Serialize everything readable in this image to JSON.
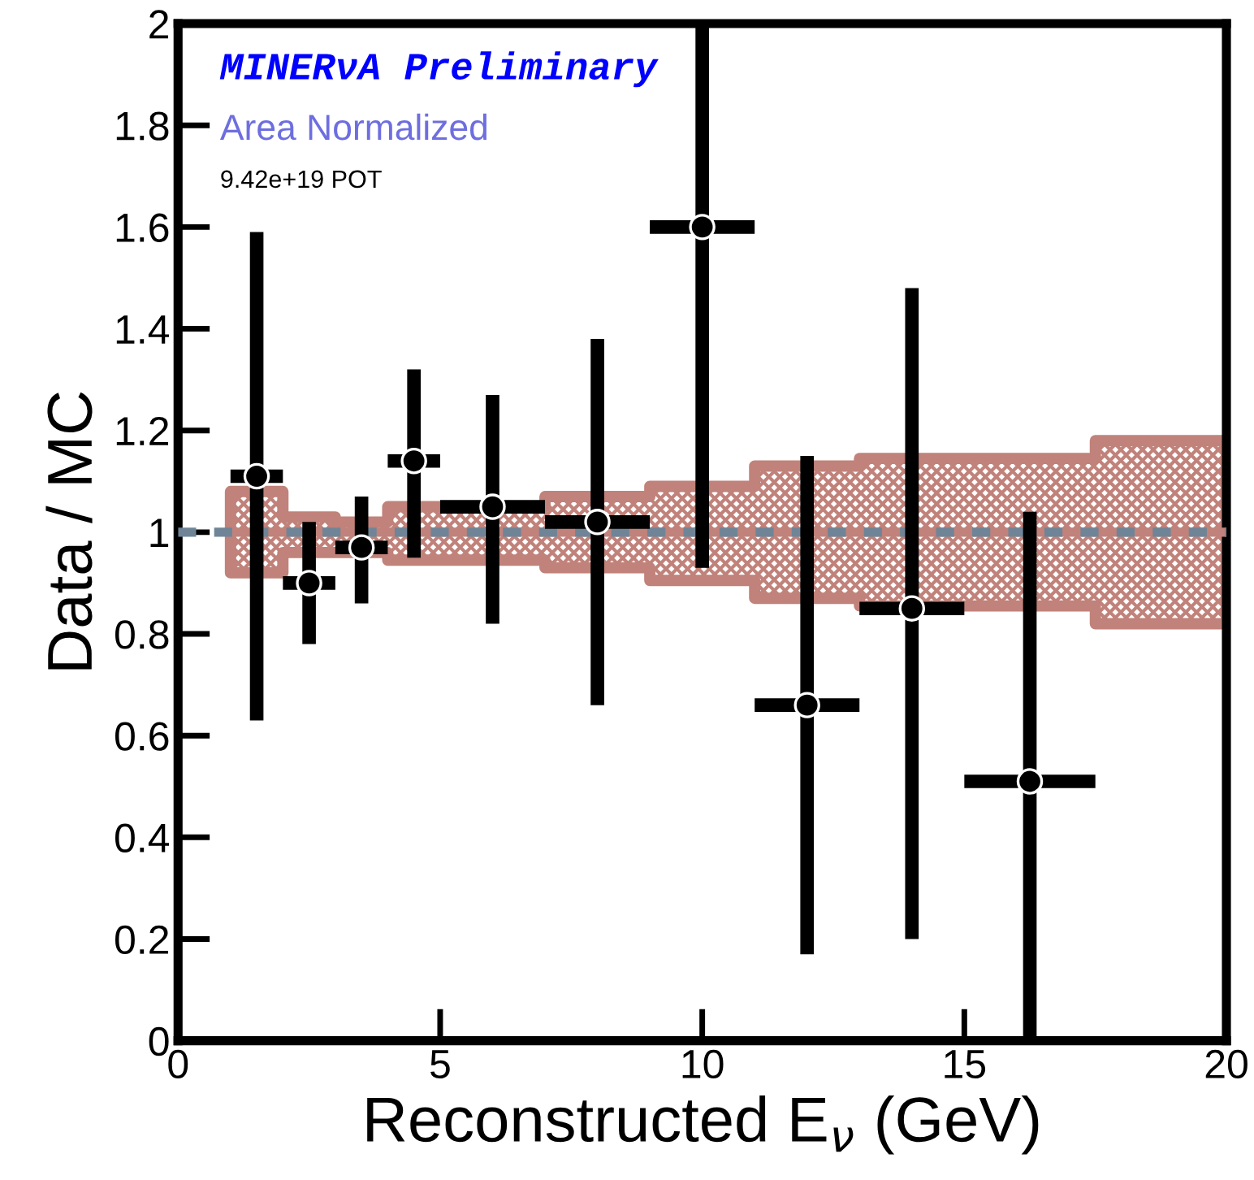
{
  "chart_data": {
    "type": "scatter",
    "xlabel": "Reconstructed E$_{ν}$ (GeV)",
    "ylabel": "Data / MC",
    "annotations": [
      "MINERνA Preliminary",
      "Area Normalized",
      "9.42e+19 POT"
    ],
    "xlim": [
      0,
      20
    ],
    "ylim": [
      0,
      2
    ],
    "xticks": [
      0,
      5,
      10,
      15,
      20
    ],
    "yticks": [
      0,
      0.2,
      0.4,
      0.6,
      0.8,
      1,
      1.2,
      1.4,
      1.6,
      1.8,
      2
    ],
    "grid": false,
    "legend": false,
    "ref_lines": [
      {
        "axis": "y",
        "value": 1,
        "color": "#6f8597",
        "line_style": "dashed"
      }
    ],
    "series": [
      {
        "type": "step",
        "color": "#c0827a",
        "x": [
          1,
          2,
          3,
          4,
          7,
          9,
          11,
          13,
          17.5,
          20
        ],
        "values": [
          1,
          1,
          1,
          1,
          1,
          1,
          1,
          1,
          1,
          1
        ],
        "lower": [
          0.92,
          0.96,
          0.96,
          0.945,
          0.93,
          0.905,
          0.87,
          0.855,
          0.82,
          0.82
        ],
        "upper": [
          1.08,
          1.03,
          1.02,
          1.05,
          1.07,
          1.09,
          1.13,
          1.145,
          1.18,
          1.18
        ]
      },
      {
        "color": "#000000",
        "marker": "circle",
        "x": [
          1.5,
          2.5,
          3.5,
          4.5,
          6,
          8,
          10,
          12,
          14,
          16.25
        ],
        "values": [
          1.11,
          0.9,
          0.97,
          1.14,
          1.05,
          1.02,
          1.6,
          0.66,
          0.85,
          0.51
        ],
        "errors": [
          [
            0.63,
            1.59
          ],
          [
            0.78,
            1.02
          ],
          [
            0.86,
            1.07
          ],
          [
            0.95,
            1.32
          ],
          [
            0.82,
            1.27
          ],
          [
            0.66,
            1.38
          ],
          [
            0.93,
            2
          ],
          [
            0.17,
            1.15
          ],
          [
            0.2,
            1.48
          ],
          [
            0,
            1.04
          ]
        ],
        "xerrors": [
          0.5,
          0.5,
          0.5,
          0.5,
          1,
          1,
          1,
          1,
          1,
          1.25
        ]
      }
    ]
  }
}
